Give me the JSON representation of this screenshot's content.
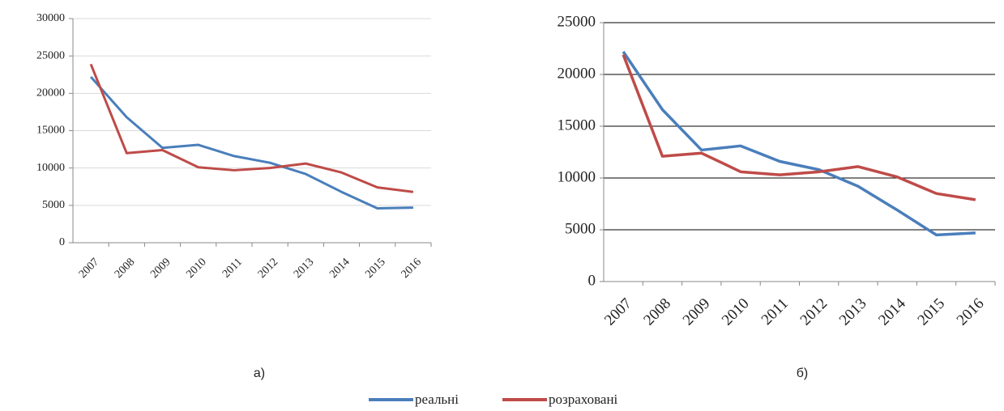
{
  "chart_data": [
    {
      "type": "line",
      "caption": "а)",
      "categories": [
        "2007",
        "2008",
        "2009",
        "2010",
        "2011",
        "2012",
        "2013",
        "2014",
        "2015",
        "2016"
      ],
      "series": [
        {
          "name": "реальні",
          "color": "#4a7ebb",
          "values": [
            22200,
            16800,
            12700,
            13100,
            11600,
            10700,
            9200,
            6800,
            4600,
            4700
          ]
        },
        {
          "name": "розраховані",
          "color": "#be4b48",
          "values": [
            23900,
            12000,
            12400,
            10100,
            9700,
            10000,
            10600,
            9400,
            7400,
            6800
          ]
        }
      ],
      "ylim": [
        0,
        30000
      ],
      "yticks": [
        0,
        5000,
        10000,
        15000,
        20000,
        25000,
        30000
      ],
      "grid": true
    },
    {
      "type": "line",
      "caption": "б)",
      "categories": [
        "2007",
        "2008",
        "2009",
        "2010",
        "2011",
        "2012",
        "2013",
        "2014",
        "2015",
        "2016"
      ],
      "series": [
        {
          "name": "реальні",
          "color": "#4a7ebb",
          "values": [
            22200,
            16600,
            12700,
            13100,
            11600,
            10800,
            9200,
            6900,
            4500,
            4700
          ]
        },
        {
          "name": "розраховані",
          "color": "#be4b48",
          "values": [
            21900,
            12100,
            12400,
            10600,
            10300,
            10600,
            11100,
            10100,
            8500,
            7900
          ]
        }
      ],
      "ylim": [
        0,
        25000
      ],
      "yticks": [
        0,
        5000,
        10000,
        15000,
        20000,
        25000
      ],
      "grid": true
    }
  ]
}
